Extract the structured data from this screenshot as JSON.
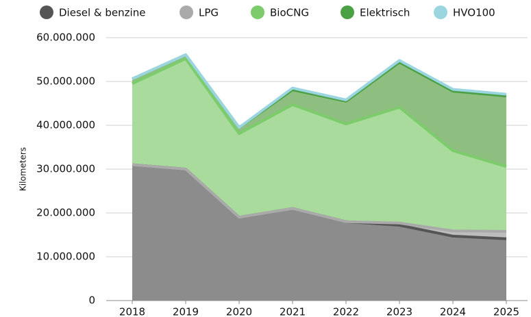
{
  "chart_data": {
    "type": "stacked_area",
    "y_label": "Kilometers",
    "x": [
      2018,
      2019,
      2020,
      2021,
      2022,
      2023,
      2024,
      2025
    ],
    "series": [
      {
        "name": "Diesel & benzine",
        "color": "#555555",
        "fill": "#8c8c8c",
        "values": [
          31000000,
          30000000,
          19000000,
          21000000,
          18000000,
          17200000,
          14700000,
          14100000
        ]
      },
      {
        "name": "LPG",
        "color": "#aaaaaa",
        "fill": "#bdbdbd",
        "values": [
          0,
          0,
          0,
          0,
          0,
          500000,
          1200000,
          1700000
        ]
      },
      {
        "name": "BioCNG",
        "color": "#7ccc6c",
        "fill": "#a9dc9c",
        "values": [
          18500000,
          25200000,
          19100000,
          23700000,
          22300000,
          26400000,
          18300000,
          14800000
        ]
      },
      {
        "name": "Elektrisch",
        "color": "#4aa043",
        "fill": "#8fbf80",
        "values": [
          1100000,
          900000,
          1400000,
          3400000,
          5200000,
          10300000,
          13600000,
          16100000
        ]
      },
      {
        "name": "HVO100",
        "color": "#9ad5e0",
        "fill": "#b9e3ea",
        "values": [
          0,
          0,
          0,
          400000,
          300000,
          400000,
          400000,
          400000
        ]
      }
    ],
    "ylim": [
      0,
      60000000
    ],
    "yticks": [
      0,
      {
        "value": 10000000,
        "label": "10.000.000"
      },
      {
        "value": 20000000,
        "label": "20.000.000"
      },
      {
        "value": 30000000,
        "label": "30.000.000"
      },
      {
        "value": 40000000,
        "label": "40.000.000"
      },
      {
        "value": 50000000,
        "label": "50.000.000"
      },
      {
        "value": 60000000,
        "label": "60.000.000"
      }
    ],
    "legend": "top"
  }
}
